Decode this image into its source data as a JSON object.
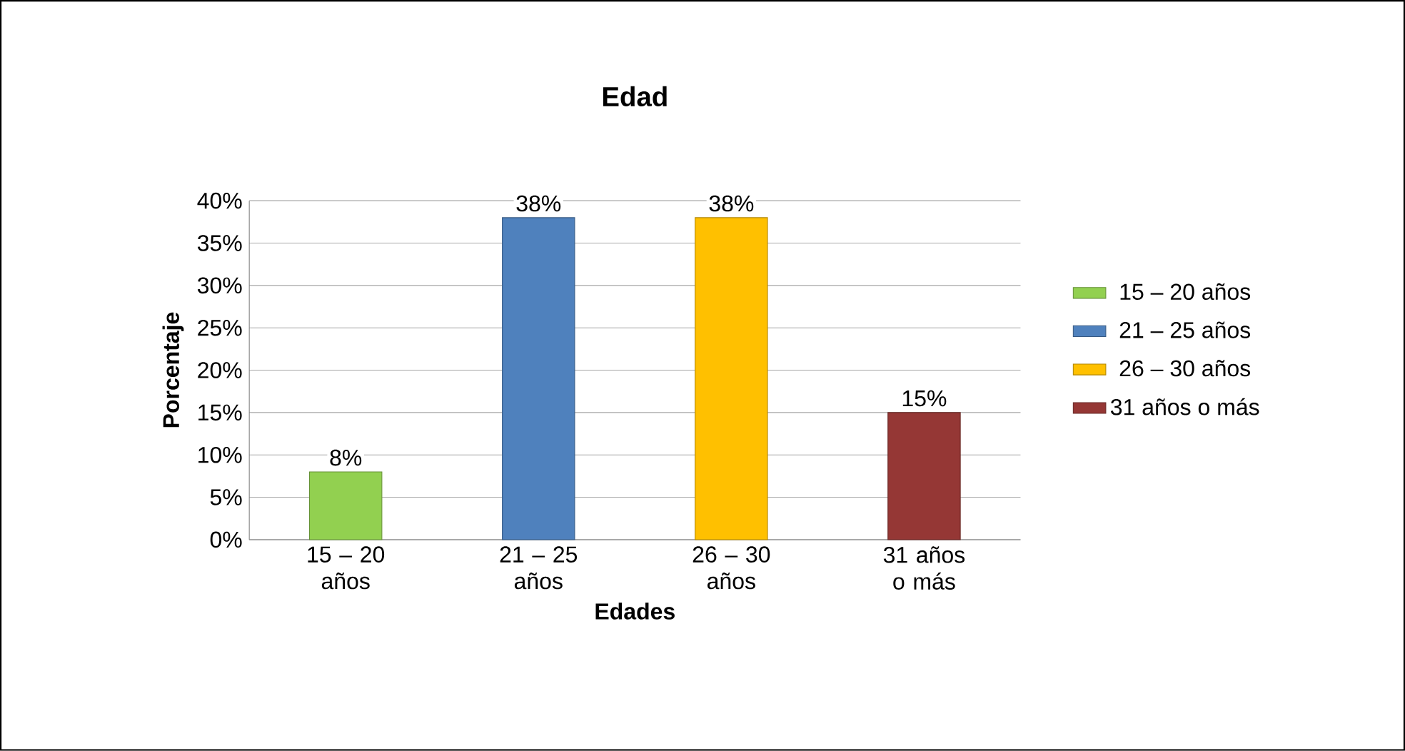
{
  "chart_data": {
    "type": "bar",
    "title": "Edad",
    "xlabel": "Edades",
    "ylabel": "Porcentaje",
    "categories": [
      "15 – 20 años",
      "21 – 25 años",
      "26 – 30 años",
      "31 años o más"
    ],
    "series": [
      {
        "name": "15 – 20 años",
        "color": "#92d050",
        "values": [
          8,
          null,
          null,
          null
        ],
        "value_labels": [
          "8%",
          null,
          null,
          null
        ]
      },
      {
        "name": "21 – 25 años",
        "color": "#4f81bd",
        "values": [
          null,
          38,
          null,
          null
        ],
        "value_labels": [
          null,
          "38%",
          null,
          null
        ]
      },
      {
        "name": "26 – 30  años",
        "color": "#ffc000",
        "values": [
          null,
          null,
          38,
          null
        ],
        "value_labels": [
          null,
          null,
          "38%",
          null
        ]
      },
      {
        "name": "31 años o más",
        "color": "#953735",
        "values": [
          null,
          null,
          null,
          15
        ],
        "value_labels": [
          null,
          null,
          null,
          "15%"
        ]
      }
    ],
    "ylim": [
      0,
      40
    ],
    "yticks": [
      {
        "value": 0,
        "label": "0%"
      },
      {
        "value": 5,
        "label": "5%"
      },
      {
        "value": 10,
        "label": "10%"
      },
      {
        "value": 15,
        "label": "15%"
      },
      {
        "value": 20,
        "label": "20%"
      },
      {
        "value": 25,
        "label": "25%"
      },
      {
        "value": 30,
        "label": "30%"
      },
      {
        "value": 35,
        "label": "35%"
      },
      {
        "value": 40,
        "label": "40%"
      }
    ],
    "grid": "y",
    "legend": "right"
  }
}
